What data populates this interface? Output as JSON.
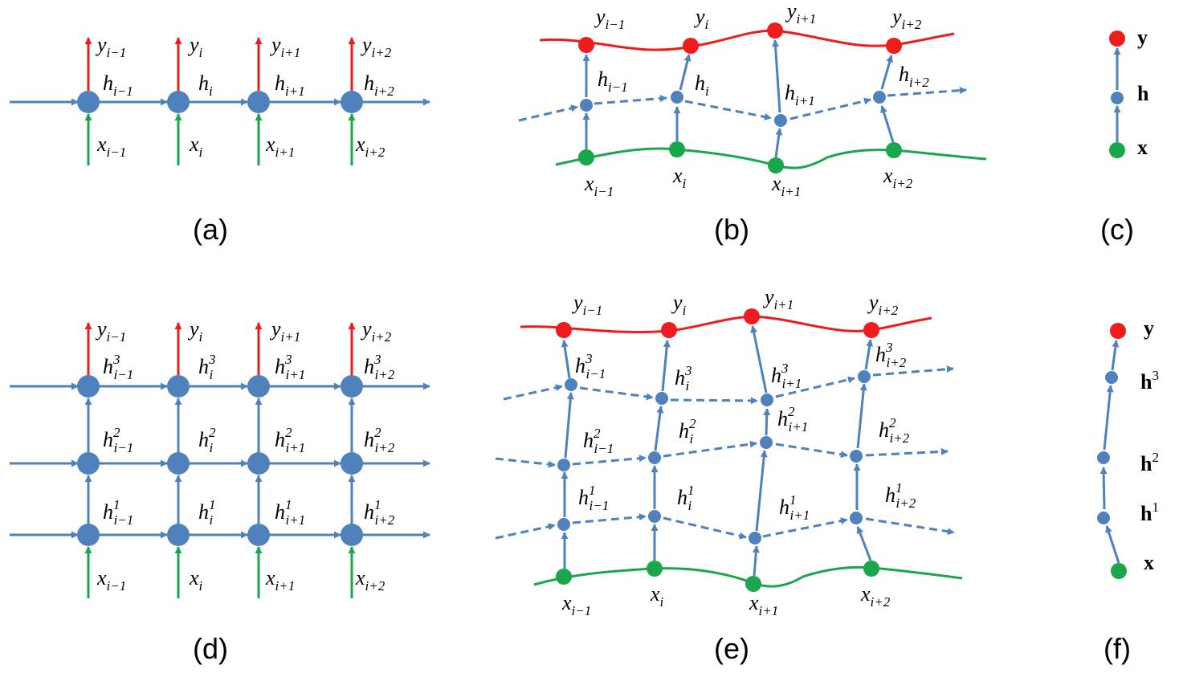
{
  "figure": {
    "panels": [
      "(a)",
      "(b)",
      "(c)",
      "(d)",
      "(e)",
      "(f)"
    ],
    "colors": {
      "hidden": "#4f81bd",
      "output": "#ee1c1c",
      "input": "#1aa64a",
      "text": "#000000"
    }
  },
  "labels": {
    "y": [
      "i−1",
      "i",
      "i+1",
      "i+2"
    ],
    "h": [
      "i−1",
      "i",
      "i+1",
      "i+2"
    ],
    "x": [
      "i−1",
      "i",
      "i+1",
      "i+2"
    ],
    "sym_y": "y",
    "sym_h": "h",
    "sym_x": "x",
    "layers": [
      "1",
      "2",
      "3"
    ]
  },
  "legend": {
    "c": [
      "y",
      "h",
      "x"
    ],
    "f": {
      "y": "y",
      "h3": "h",
      "h3_sup": "3",
      "h2": "h",
      "h2_sup": "2",
      "h1": "h",
      "h1_sup": "1",
      "x": "x"
    }
  }
}
